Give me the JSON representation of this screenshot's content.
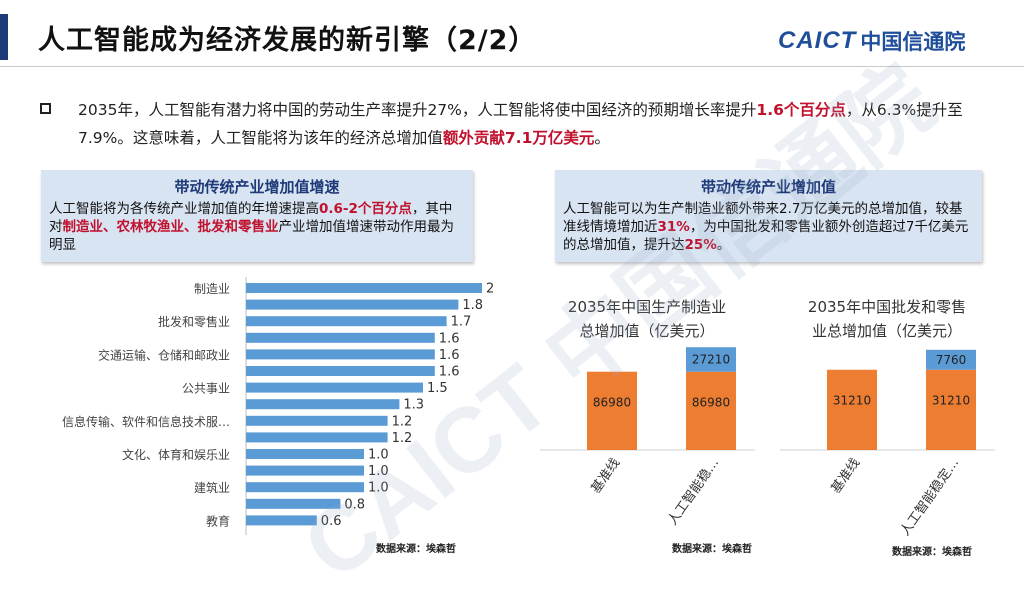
{
  "header": {
    "title": "人工智能成为经济发展的新引擎（2/2）",
    "logo_en": "CAICT",
    "logo_cn": "中国信通院"
  },
  "intro": {
    "p1": "2035年，人工智能有潜力将中国的劳动生产率提升27%，人工智能将使中国经济的预期增长率提升",
    "p1_highlight": "1.6个百分点",
    "p2": "，从6.3%提升至7.9%。这意味着，人工智能将为该年的经济总增加值",
    "p2_highlight": "额外贡献7.1万亿美元",
    "p3": "。"
  },
  "left_card": {
    "title": "带动传统产业增加值增速",
    "t1": "人工智能将为各传统产业增加值的年增速提高",
    "h1": "0.6-2个百分点",
    "t2": "，其中对",
    "h2": "制造业、农林牧渔业、批发和零售业",
    "t3": "产业增加值增速带动作用最为明显"
  },
  "right_card": {
    "title": "带动传统产业增加值",
    "t1": "人工智能可以为生产制造业额外带来2.7万亿美元的总增加值，较基准线情境增加近",
    "h1": "31%",
    "t2": "，为中国批发和零售业额外创造超过7千亿美元的总增加值，提升达",
    "h2": "25%",
    "t3": "。"
  },
  "watermark": "CAICT 中国信通院",
  "sources": {
    "left": "数据来源：埃森哲",
    "middle": "数据来源：埃森哲",
    "right": "数据来源：埃森哲"
  },
  "chart_data": [
    {
      "type": "bar",
      "orientation": "horizontal",
      "categories": [
        "制造业",
        "",
        "批发和零售业",
        "",
        "交通运输、仓储和邮政业",
        "",
        "公共事业",
        "",
        "信息传输、软件和信息技术服…",
        "",
        "文化、体育和娱乐业",
        "",
        "建筑业",
        "",
        "教育"
      ],
      "values": [
        2,
        1.8,
        1.7,
        1.6,
        1.6,
        1.6,
        1.5,
        1.3,
        1.2,
        1.2,
        1.0,
        1.0,
        1.0,
        0.8,
        0.6
      ],
      "value_labels": [
        "2",
        "1.8",
        "1.7",
        "1.6",
        "1.6",
        "1.6",
        "1.5",
        "1.3",
        "1.2",
        "1.2",
        "1.0",
        "1.0",
        "1.0",
        "0.8",
        "0.6"
      ],
      "xlim": [
        0,
        2
      ],
      "color": "#5b9bd5"
    },
    {
      "type": "bar",
      "stacked": true,
      "title": "2035年中国生产制造业总增加值（亿美元）",
      "categories": [
        "基准线",
        "人工智能稳…"
      ],
      "series": [
        {
          "values": [
            86980,
            86980
          ],
          "labels": [
            "86980",
            "86980"
          ],
          "color": "#ed7d31"
        },
        {
          "values": [
            0,
            27210
          ],
          "labels": [
            "",
            "27210"
          ],
          "color": "#5b9bd5"
        }
      ],
      "ylim": [
        0,
        120000
      ]
    },
    {
      "type": "bar",
      "stacked": true,
      "title": "2035年中国批发和零售业总增加值（亿美元）",
      "categories": [
        "基准线",
        "人工智能稳定…"
      ],
      "series": [
        {
          "values": [
            31210,
            31210
          ],
          "labels": [
            "31210",
            "31210"
          ],
          "color": "#ed7d31"
        },
        {
          "values": [
            0,
            7760
          ],
          "labels": [
            "",
            "7760"
          ],
          "color": "#5b9bd5"
        }
      ],
      "ylim": [
        0,
        42000
      ]
    }
  ]
}
